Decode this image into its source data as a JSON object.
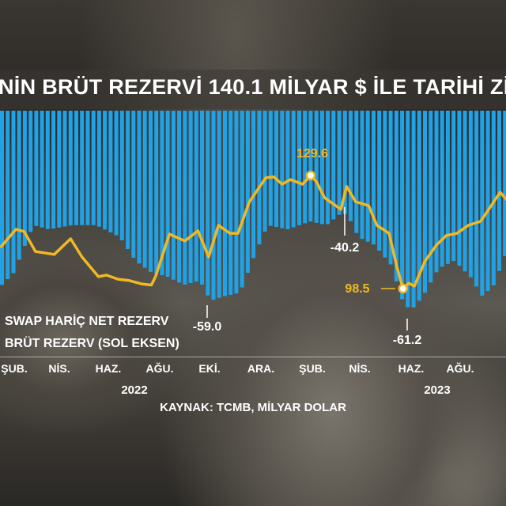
{
  "title": "NİN BRÜT REZERVİ 140.1 MİLYAR $ İLE TARİHİ ZİR",
  "colors": {
    "bars": "#1ea2e8",
    "line": "#f2b824",
    "text": "#ffffff"
  },
  "chart_data": {
    "type": "bar+line",
    "title": "NİN BRÜT REZERVİ 140.1 MİLYAR $ İLE TARİHİ ZİR",
    "source": "KAYNAK: TCMB, MİLYAR DOLAR",
    "x_ticks": [
      "ŞUB.",
      "NİS.",
      "HAZ.",
      "AĞU.",
      "EKİ.",
      "ARA.",
      "ŞUB.",
      "NİS.",
      "HAZ.",
      "AĞU."
    ],
    "x_years": [
      "2022",
      "2023"
    ],
    "series": [
      {
        "name": "SWAP HARİÇ NET REZERV",
        "type": "bar",
        "color": "#1ea2e8",
        "points": [
          [
            "2022-01-15",
            -55.6
          ],
          [
            "2022-01-29",
            -53.0
          ],
          [
            "2022-02-08",
            -48.7
          ],
          [
            "2022-02-22",
            -42.7
          ],
          [
            "2022-03-13",
            -43.6
          ],
          [
            "2022-04-11",
            -42.7
          ],
          [
            "2022-05-10",
            -42.7
          ],
          [
            "2022-06-08",
            -45.3
          ],
          [
            "2022-06-27",
            -50.4
          ],
          [
            "2022-07-17",
            -53.0
          ],
          [
            "2022-08-05",
            -53.8
          ],
          [
            "2022-08-25",
            -55.6
          ],
          [
            "2022-09-14",
            -54.7
          ],
          [
            "2022-09-27",
            -59.0
          ],
          [
            "2022-10-13",
            -58.1
          ],
          [
            "2022-11-02",
            -57.3
          ],
          [
            "2022-11-21",
            -48.7
          ],
          [
            "2022-12-06",
            -42.7
          ],
          [
            "2022-12-30",
            -43.6
          ],
          [
            "2023-01-27",
            -41.9
          ],
          [
            "2023-02-16",
            -42.7
          ],
          [
            "2023-03-03",
            -40.5
          ],
          [
            "2023-03-13",
            -40.2
          ],
          [
            "2023-03-27",
            -45.3
          ],
          [
            "2023-04-16",
            -47.0
          ],
          [
            "2023-05-06",
            -51.3
          ],
          [
            "2023-05-20",
            -59.0
          ],
          [
            "2023-05-30",
            -61.2
          ],
          [
            "2023-06-14",
            -58.1
          ],
          [
            "2023-07-03",
            -52.1
          ],
          [
            "2023-07-22",
            -50.4
          ],
          [
            "2023-08-11",
            -53.8
          ],
          [
            "2023-08-26",
            -58.1
          ],
          [
            "2023-09-09",
            -55.6
          ],
          [
            "2023-09-24",
            -48.7
          ]
        ]
      },
      {
        "name": "BRÜT REZERV (SOL EKSEN)",
        "type": "line",
        "color": "#f2b824",
        "points": [
          [
            "2022-01-15",
            109.8
          ],
          [
            "2022-02-03",
            114.8
          ],
          [
            "2022-02-13",
            114.2
          ],
          [
            "2022-02-27",
            108.7
          ],
          [
            "2022-03-22",
            107.9
          ],
          [
            "2022-04-11",
            112.2
          ],
          [
            "2022-04-25",
            107.2
          ],
          [
            "2022-05-15",
            101.8
          ],
          [
            "2022-05-25",
            102.2
          ],
          [
            "2022-06-08",
            101.1
          ],
          [
            "2022-06-22",
            100.7
          ],
          [
            "2022-07-07",
            99.8
          ],
          [
            "2022-07-19",
            99.5
          ],
          [
            "2022-07-24",
            101.8
          ],
          [
            "2022-08-10",
            113.5
          ],
          [
            "2022-08-29",
            111.6
          ],
          [
            "2022-09-14",
            114.4
          ],
          [
            "2022-09-27",
            107.2
          ],
          [
            "2022-10-09",
            115.9
          ],
          [
            "2022-10-23",
            113.7
          ],
          [
            "2022-11-02",
            113.7
          ],
          [
            "2022-11-16",
            122.4
          ],
          [
            "2022-12-06",
            129.0
          ],
          [
            "2022-12-16",
            129.2
          ],
          [
            "2022-12-26",
            127.2
          ],
          [
            "2023-01-05",
            128.5
          ],
          [
            "2023-01-20",
            127.2
          ],
          [
            "2023-01-30",
            129.6
          ],
          [
            "2023-02-06",
            127.9
          ],
          [
            "2023-02-16",
            123.5
          ],
          [
            "2023-03-08",
            120.3
          ],
          [
            "2023-03-15",
            126.6
          ],
          [
            "2023-03-26",
            122.4
          ],
          [
            "2023-04-11",
            121.3
          ],
          [
            "2023-04-21",
            115.9
          ],
          [
            "2023-05-06",
            113.7
          ],
          [
            "2023-05-15",
            105.0
          ],
          [
            "2023-05-23",
            98.5
          ],
          [
            "2023-05-30",
            100.0
          ],
          [
            "2023-06-06",
            99.2
          ],
          [
            "2023-06-19",
            106.1
          ],
          [
            "2023-07-03",
            110.5
          ],
          [
            "2023-07-15",
            113.1
          ],
          [
            "2023-07-28",
            113.7
          ],
          [
            "2023-08-11",
            115.9
          ],
          [
            "2023-08-26",
            117.0
          ],
          [
            "2023-09-05",
            120.3
          ],
          [
            "2023-09-19",
            125.0
          ],
          [
            "2023-09-29",
            122.4
          ]
        ]
      }
    ],
    "annotations": {
      "line_max": "129.6",
      "line_min": "98.5",
      "bar_a": "-59.0",
      "bar_b": "-40.2",
      "bar_c": "-61.2"
    },
    "grid": false
  }
}
